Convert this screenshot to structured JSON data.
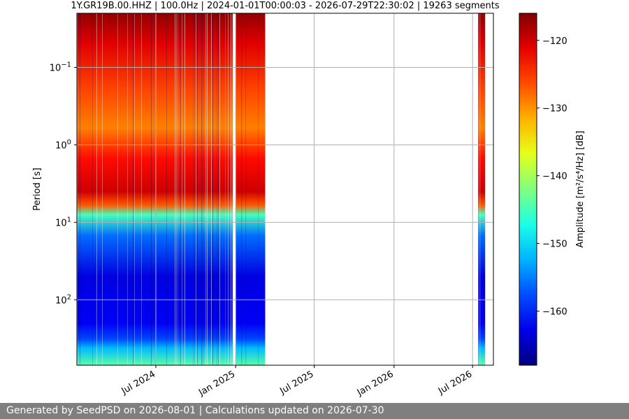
{
  "chart_data": {
    "type": "heatmap",
    "title": "1Y.GR19B.00.HHZ | 100.0Hz | 2024-01-01T00:00:03 - 2026-07-29T22:30:02 | 19263 segments",
    "xlabel": "",
    "ylabel": "Period [s]",
    "y_scale": "log",
    "y_inverted": true,
    "y_range": [
      0.02,
      700
    ],
    "y_ticks": [
      {
        "value": 0.1,
        "base": "10",
        "exp": "−1"
      },
      {
        "value": 1,
        "base": "10",
        "exp": "0"
      },
      {
        "value": 10,
        "base": "10",
        "exp": "1"
      },
      {
        "value": 100,
        "base": "10",
        "exp": "2"
      }
    ],
    "x_range": [
      "2024-01-01",
      "2026-08-18"
    ],
    "x_ticks": [
      {
        "date": "2024-07-01",
        "label": "Jul 2024"
      },
      {
        "date": "2025-01-01",
        "label": "Jan 2025"
      },
      {
        "date": "2025-07-01",
        "label": "Jul 2025"
      },
      {
        "date": "2026-01-01",
        "label": "Jan 2026"
      },
      {
        "date": "2026-07-01",
        "label": "Jul 2026"
      }
    ],
    "grid": true,
    "data_segments": [
      {
        "start": "2024-01-01",
        "end": "2024-12-25"
      },
      {
        "start": "2025-01-01",
        "end": "2025-03-10"
      },
      {
        "start": "2026-07-14",
        "end": "2026-07-30"
      }
    ],
    "period_profile": [
      {
        "period": 0.02,
        "db": -117
      },
      {
        "period": 0.05,
        "db": -121
      },
      {
        "period": 0.2,
        "db": -126
      },
      {
        "period": 0.6,
        "db": -129
      },
      {
        "period": 1.5,
        "db": -123
      },
      {
        "period": 4,
        "db": -120
      },
      {
        "period": 6,
        "db": -127
      },
      {
        "period": 8,
        "db": -145
      },
      {
        "period": 15,
        "db": -156
      },
      {
        "period": 50,
        "db": -163
      },
      {
        "period": 200,
        "db": -162
      },
      {
        "period": 320,
        "db": -158
      },
      {
        "period": 420,
        "db": -152
      },
      {
        "period": 700,
        "db": -144
      }
    ],
    "colorbar": {
      "label": "Amplitude [m²/s⁴/Hz] [dB]",
      "min": -168,
      "max": -116,
      "ticks": [
        "−120",
        "−130",
        "−140",
        "−150",
        "−160"
      ],
      "tick_values": [
        -120,
        -130,
        -140,
        -150,
        -160
      ],
      "colormap": "jet"
    }
  },
  "footer": {
    "text": "Generated by SeedPSD on 2026-08-01 | Calculations updated on 2026-07-30"
  }
}
